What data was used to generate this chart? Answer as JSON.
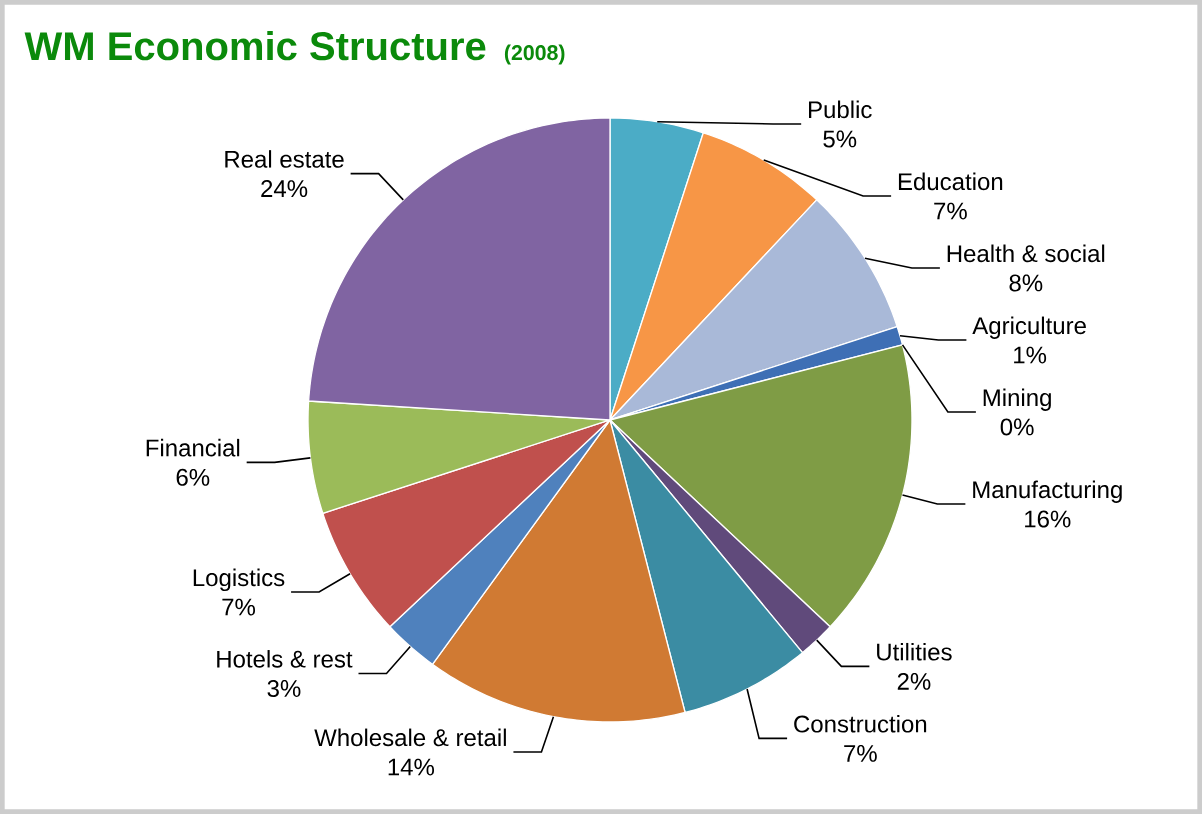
{
  "chart_data": {
    "type": "pie",
    "title": "WM Economic Structure",
    "subtitle": "(2008)",
    "categories": [
      "Public",
      "Education",
      "Health & social",
      "Agriculture",
      "Mining",
      "Manufacturing",
      "Utilities",
      "Construction",
      "Wholesale & retail",
      "Hotels & rest",
      "Logistics",
      "Financial",
      "Real estate"
    ],
    "values": [
      5,
      7,
      8,
      1,
      0,
      16,
      2,
      7,
      14,
      3,
      7,
      6,
      24
    ],
    "value_labels": [
      "5%",
      "7%",
      "8%",
      "1%",
      "0%",
      "16%",
      "2%",
      "7%",
      "14%",
      "3%",
      "7%",
      "6%",
      "24%"
    ],
    "colors": [
      "#4bacc6",
      "#f79646",
      "#a9b9d8",
      "#3e6fb5",
      "#9b4a4a",
      "#7f9c45",
      "#604a7b",
      "#3b8ca3",
      "#d07a33",
      "#4f81bd",
      "#c0504d",
      "#9bbb59",
      "#8064a2"
    ]
  }
}
